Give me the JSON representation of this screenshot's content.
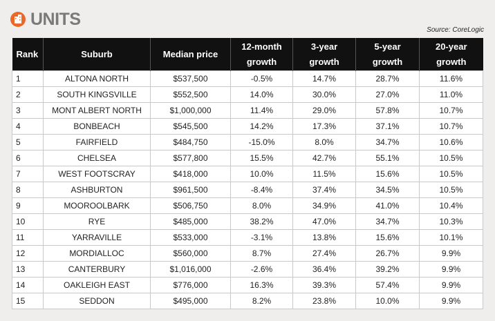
{
  "header": {
    "title": "UNITS",
    "source": "Source: CoreLogic"
  },
  "table": {
    "columns": [
      "Rank",
      "Suburb",
      "Median price",
      "12-month growth",
      "3-year growth",
      "5-year growth",
      "20-year growth"
    ],
    "rows": [
      [
        "1",
        "ALTONA NORTH",
        "$537,500",
        "-0.5%",
        "14.7%",
        "28.7%",
        "11.6%"
      ],
      [
        "2",
        "SOUTH KINGSVILLE",
        "$552,500",
        "14.0%",
        "30.0%",
        "27.0%",
        "11.0%"
      ],
      [
        "3",
        "MONT ALBERT NORTH",
        "$1,000,000",
        "11.4%",
        "29.0%",
        "57.8%",
        "10.7%"
      ],
      [
        "4",
        "BONBEACH",
        "$545,500",
        "14.2%",
        "17.3%",
        "37.1%",
        "10.7%"
      ],
      [
        "5",
        "FAIRFIELD",
        "$484,750",
        "-15.0%",
        "8.0%",
        "34.7%",
        "10.6%"
      ],
      [
        "6",
        "CHELSEA",
        "$577,800",
        "15.5%",
        "42.7%",
        "55.1%",
        "10.5%"
      ],
      [
        "7",
        "WEST FOOTSCRAY",
        "$418,000",
        "10.0%",
        "11.5%",
        "15.6%",
        "10.5%"
      ],
      [
        "8",
        "ASHBURTON",
        "$961,500",
        "-8.4%",
        "37.4%",
        "34.5%",
        "10.5%"
      ],
      [
        "9",
        "MOOROOLBARK",
        "$506,750",
        "8.0%",
        "34.9%",
        "41.0%",
        "10.4%"
      ],
      [
        "10",
        "RYE",
        "$485,000",
        "38.2%",
        "47.0%",
        "34.7%",
        "10.3%"
      ],
      [
        "11",
        "YARRAVILLE",
        "$533,000",
        "-3.1%",
        "13.8%",
        "15.6%",
        "10.1%"
      ],
      [
        "12",
        "MORDIALLOC",
        "$560,000",
        "8.7%",
        "27.4%",
        "26.7%",
        "9.9%"
      ],
      [
        "13",
        "CANTERBURY",
        "$1,016,000",
        "-2.6%",
        "36.4%",
        "39.2%",
        "9.9%"
      ],
      [
        "14",
        "OAKLEIGH EAST",
        "$776,000",
        "16.3%",
        "39.3%",
        "57.4%",
        "9.9%"
      ],
      [
        "15",
        "SEDDON",
        "$495,000",
        "8.2%",
        "23.8%",
        "10.0%",
        "9.9%"
      ]
    ]
  }
}
